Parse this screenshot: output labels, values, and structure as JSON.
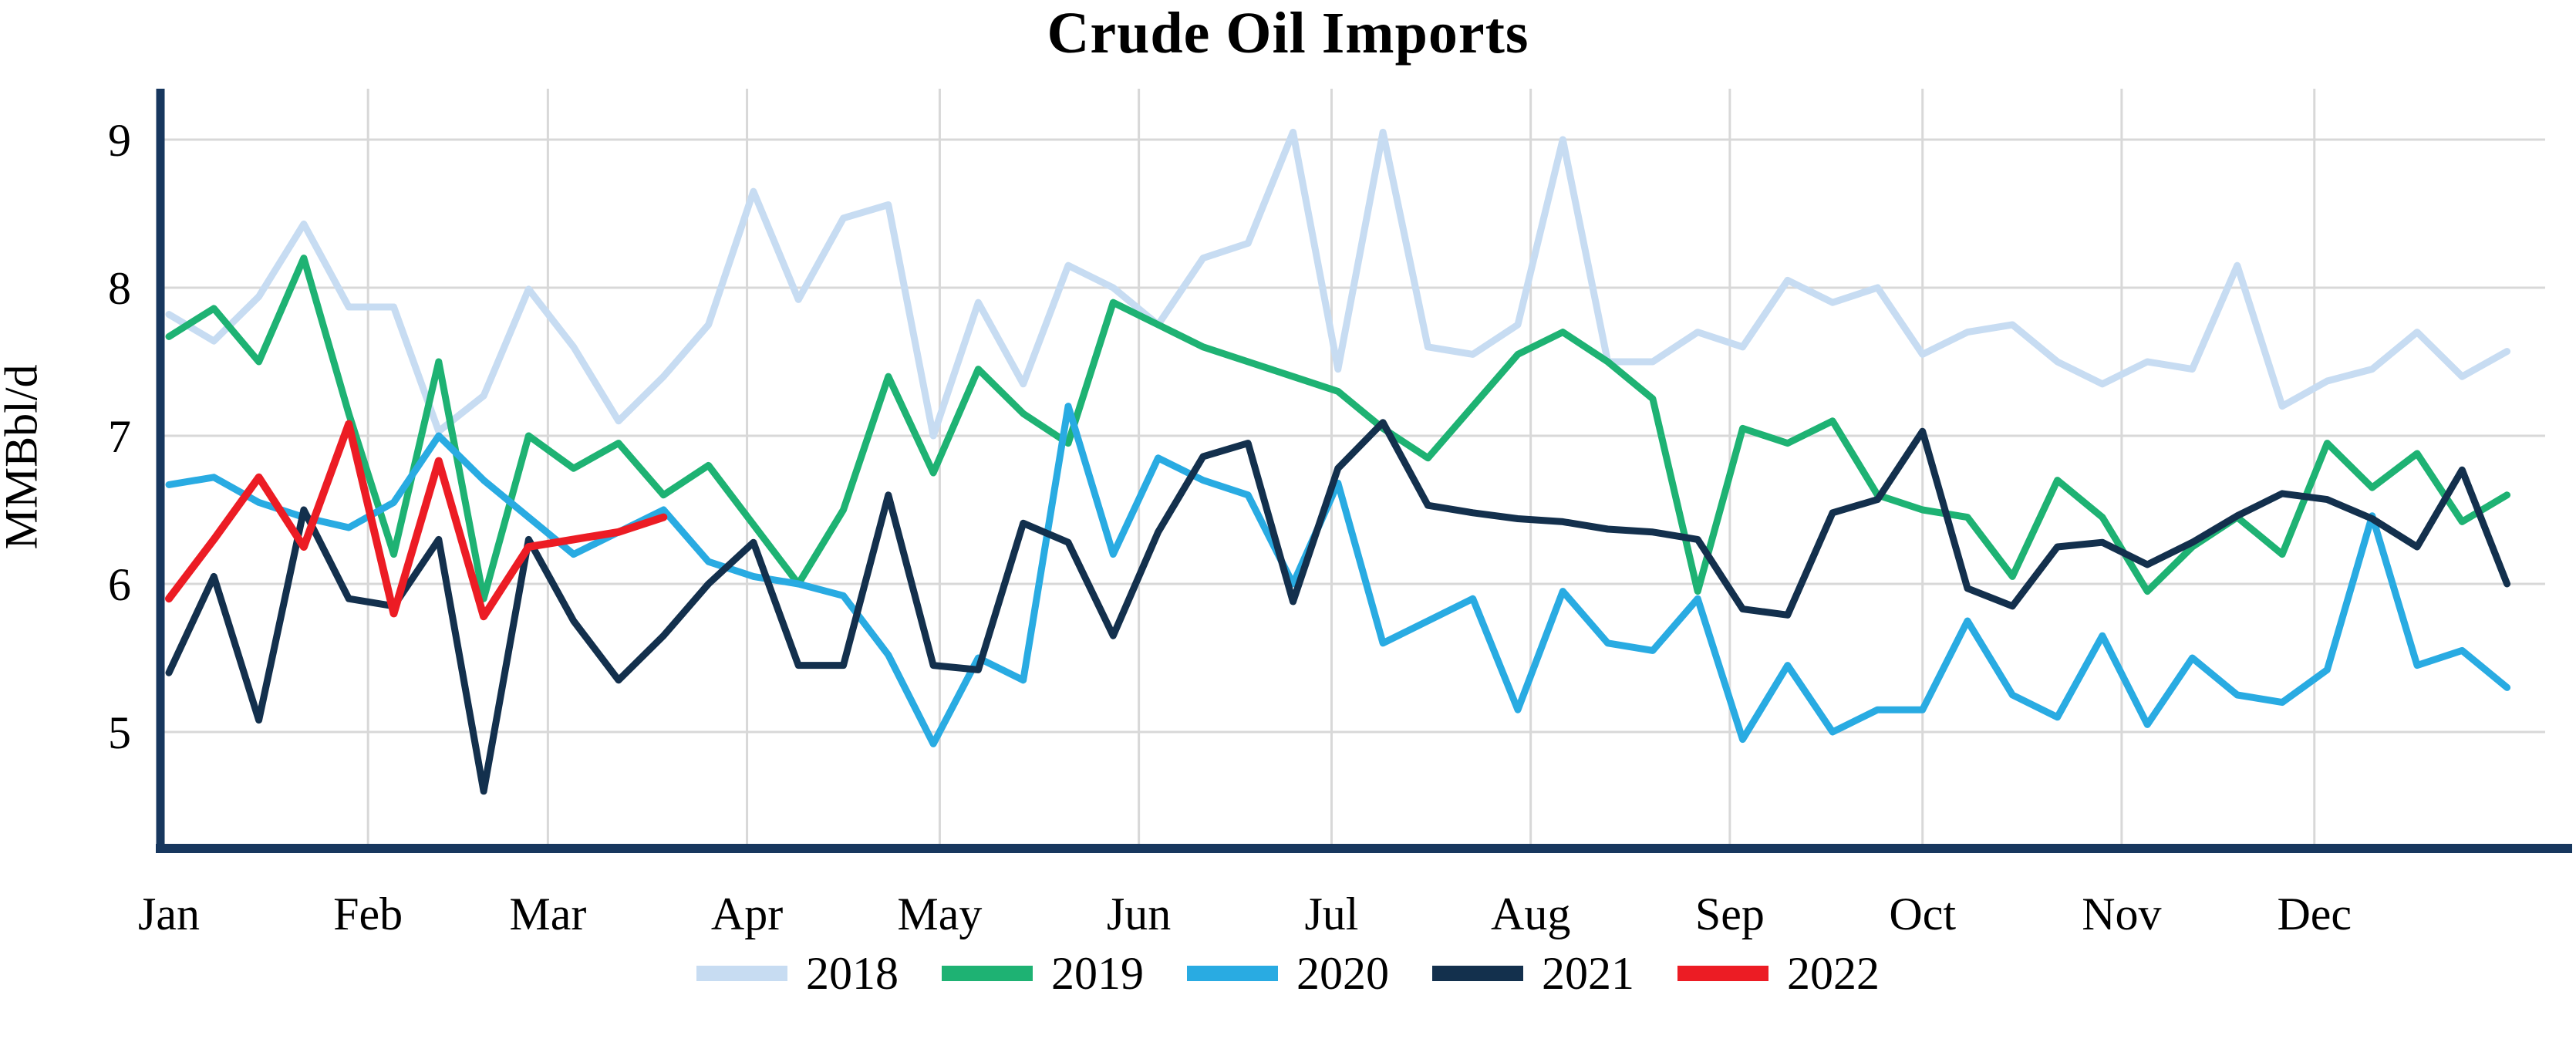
{
  "title": "Crude Oil Imports",
  "y_axis": {
    "label": "MMBbl/d",
    "ticks": [
      9,
      8,
      7,
      6,
      5
    ]
  },
  "x_axis": {
    "month_labels": [
      "Jan",
      "Feb",
      "Mar",
      "Apr",
      "May",
      "Jun",
      "Jul",
      "Aug",
      "Sep",
      "Oct",
      "Nov",
      "Dec"
    ]
  },
  "colors": {
    "axis": "#17375E",
    "grid": "#D8D8D8",
    "title_text": "#000000",
    "series_2018": "#C7DCF2",
    "series_2019": "#1EB273",
    "series_2020": "#29ABE2",
    "series_2021": "#13304D",
    "series_2022": "#EC1C24"
  },
  "legend": {
    "entries": [
      "2018",
      "2019",
      "2020",
      "2021",
      "2022"
    ]
  },
  "chart_data": {
    "type": "line",
    "title": "Crude Oil Imports",
    "xlabel": "",
    "ylabel": "MMBbl/d",
    "x_unit": "weekly",
    "ylim": [
      4.2,
      9.35
    ],
    "yticks": [
      5,
      6,
      7,
      8,
      9
    ],
    "grid": true,
    "legend_position": "bottom",
    "categories_months": [
      "Jan",
      "Feb",
      "Mar",
      "Apr",
      "May",
      "Jun",
      "Jul",
      "Aug",
      "Sep",
      "Oct",
      "Nov",
      "Dec"
    ],
    "series": [
      {
        "name": "2018",
        "color": "#C7DCF2",
        "values": [
          7.82,
          7.64,
          7.94,
          8.43,
          7.87,
          7.87,
          7.03,
          7.27,
          7.99,
          7.6,
          7.1,
          7.4,
          7.75,
          8.65,
          7.92,
          8.47,
          8.56,
          7.0,
          7.9,
          7.35,
          8.15,
          8.0,
          7.75,
          8.2,
          8.3,
          9.05,
          7.45,
          9.05,
          7.6,
          7.55,
          7.75,
          9.0,
          7.5,
          7.5,
          7.7,
          7.6,
          8.05,
          7.9,
          8.0,
          7.55,
          7.7,
          7.75,
          7.5,
          7.35,
          7.5,
          7.45,
          8.15,
          7.2,
          7.37,
          7.45,
          7.7,
          7.4,
          7.57
        ]
      },
      {
        "name": "2019",
        "color": "#1EB273",
        "values": [
          7.67,
          7.86,
          7.5,
          8.2,
          7.15,
          6.2,
          7.5,
          5.9,
          7.0,
          6.78,
          6.95,
          6.6,
          6.8,
          6.4,
          6.0,
          6.5,
          7.4,
          6.75,
          7.45,
          7.15,
          6.95,
          7.9,
          7.75,
          7.6,
          7.5,
          7.4,
          7.3,
          7.05,
          6.85,
          7.2,
          7.55,
          7.7,
          7.5,
          7.25,
          5.95,
          7.05,
          6.95,
          7.1,
          6.6,
          6.5,
          6.45,
          6.05,
          6.7,
          6.45,
          5.95,
          6.25,
          6.45,
          6.2,
          6.95,
          6.65,
          6.88,
          6.42,
          6.6
        ]
      },
      {
        "name": "2020",
        "color": "#29ABE2",
        "values": [
          6.67,
          6.72,
          6.55,
          6.45,
          6.38,
          6.55,
          7.0,
          6.7,
          6.45,
          6.2,
          6.35,
          6.5,
          6.15,
          6.05,
          6.0,
          5.92,
          5.52,
          4.92,
          5.5,
          5.35,
          7.2,
          6.2,
          6.85,
          6.7,
          6.6,
          6.0,
          6.68,
          5.6,
          5.75,
          5.9,
          5.15,
          5.95,
          5.6,
          5.55,
          5.9,
          4.95,
          5.45,
          5.0,
          5.15,
          5.15,
          5.75,
          5.25,
          5.1,
          5.65,
          5.05,
          5.5,
          5.25,
          5.2,
          5.42,
          6.46,
          5.45,
          5.55,
          5.3
        ]
      },
      {
        "name": "2021",
        "color": "#13304D",
        "values": [
          5.4,
          6.05,
          5.08,
          6.5,
          5.9,
          5.85,
          6.3,
          4.6,
          6.3,
          5.75,
          5.35,
          5.65,
          6.0,
          6.28,
          5.45,
          5.45,
          6.6,
          5.45,
          5.42,
          6.41,
          6.28,
          5.65,
          6.35,
          6.86,
          6.95,
          5.88,
          6.78,
          7.09,
          6.53,
          6.48,
          6.44,
          6.42,
          6.37,
          6.35,
          6.3,
          5.83,
          5.79,
          6.48,
          6.57,
          7.03,
          5.97,
          5.85,
          6.25,
          6.28,
          6.13,
          6.28,
          6.46,
          6.61,
          6.57,
          6.44,
          6.25,
          6.77,
          6.0
        ]
      },
      {
        "name": "2022",
        "color": "#EC1C24",
        "values": [
          5.9,
          6.3,
          6.72,
          6.25,
          7.08,
          5.8,
          6.83,
          5.78,
          6.25,
          6.3,
          6.35,
          6.45
        ]
      }
    ]
  }
}
